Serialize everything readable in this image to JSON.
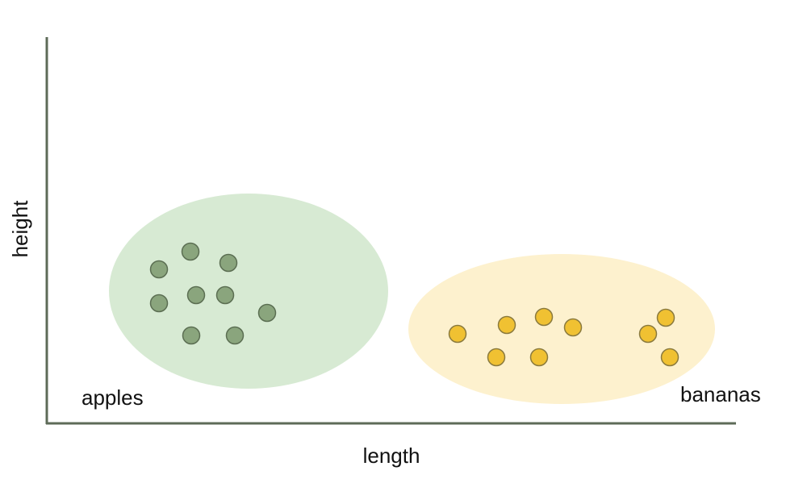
{
  "axes": {
    "x_label": "length",
    "y_label": "height"
  },
  "clusters": [
    {
      "label": "apples",
      "region_color": "#d7ead3",
      "point_color": "#8aa57d",
      "point_stroke": "#5b6e52"
    },
    {
      "label": "bananas",
      "region_color": "#fdf1ce",
      "point_color": "#f0c132",
      "point_stroke": "#8a7a3e"
    }
  ],
  "colors": {
    "axis": "#5e6b58"
  }
}
